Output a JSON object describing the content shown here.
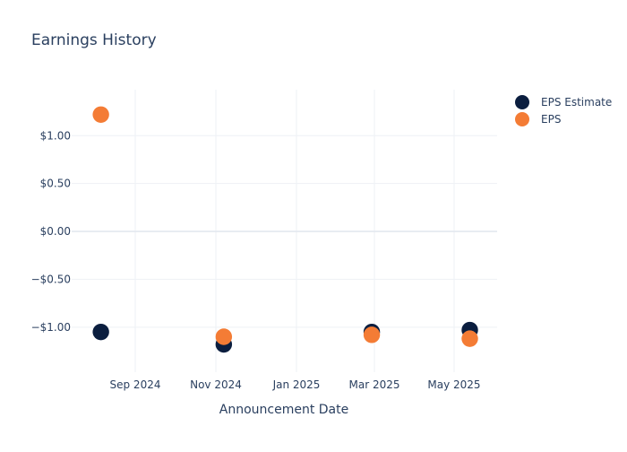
{
  "chart_data": {
    "type": "scatter",
    "title": "Earnings History",
    "xlabel": "Announcement Date",
    "ylabel": "",
    "x_tick_labels": [
      "Sep 2024",
      "Nov 2024",
      "Jan 2025",
      "Mar 2025",
      "May 2025"
    ],
    "y_tick_labels": [
      "$1.00",
      "$0.50",
      "$0.00",
      "−$0.50",
      "−$1.00"
    ],
    "y_tick_values": [
      1.0,
      0.5,
      0.0,
      -0.5,
      -1.0
    ],
    "ylim": [
      -1.47,
      1.48
    ],
    "x_dates": [
      "2024-08-06",
      "2024-11-07",
      "2025-02-27",
      "2025-05-13"
    ],
    "series": [
      {
        "name": "EPS Estimate",
        "color": "#0b1e3f",
        "values": [
          -1.05,
          -1.18,
          -1.05,
          -1.03
        ]
      },
      {
        "name": "EPS",
        "color": "#f47c35",
        "values": [
          1.22,
          -1.1,
          -1.08,
          -1.12
        ]
      }
    ],
    "grid": true,
    "legend": "top-right"
  }
}
